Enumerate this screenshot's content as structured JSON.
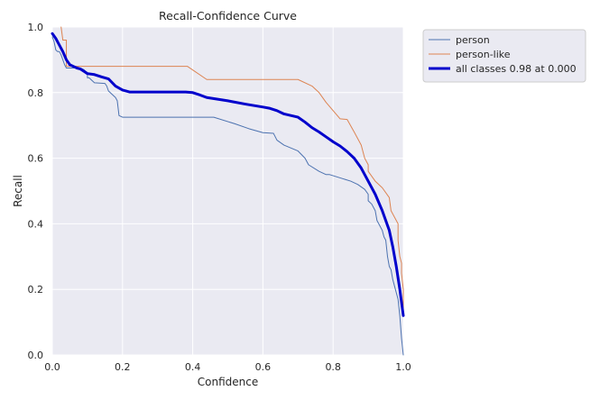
{
  "chart_data": {
    "type": "line",
    "title": "Recall-Confidence Curve",
    "xlabel": "Confidence",
    "ylabel": "Recall",
    "xlim": [
      0,
      1
    ],
    "ylim": [
      0,
      1
    ],
    "xticks": [
      "0.0",
      "0.2",
      "0.4",
      "0.6",
      "0.8",
      "1.0"
    ],
    "yticks": [
      "0.0",
      "0.2",
      "0.4",
      "0.6",
      "0.8",
      "1.0"
    ],
    "grid": true,
    "legend_position": "outside-top-right",
    "series": [
      {
        "name": "person",
        "color": "#4c72b0",
        "line_width": "thin",
        "points": [
          [
            0,
            0.97
          ],
          [
            0.005,
            0.955
          ],
          [
            0.01,
            0.93
          ],
          [
            0.015,
            0.925
          ],
          [
            0.02,
            0.925
          ],
          [
            0.025,
            0.915
          ],
          [
            0.03,
            0.9
          ],
          [
            0.035,
            0.885
          ],
          [
            0.04,
            0.875
          ],
          [
            0.06,
            0.875
          ],
          [
            0.08,
            0.875
          ],
          [
            0.09,
            0.87
          ],
          [
            0.1,
            0.86
          ],
          [
            0.1,
            0.845
          ],
          [
            0.105,
            0.845
          ],
          [
            0.11,
            0.84
          ],
          [
            0.12,
            0.83
          ],
          [
            0.15,
            0.828
          ],
          [
            0.155,
            0.82
          ],
          [
            0.16,
            0.805
          ],
          [
            0.17,
            0.795
          ],
          [
            0.18,
            0.785
          ],
          [
            0.185,
            0.775
          ],
          [
            0.19,
            0.73
          ],
          [
            0.2,
            0.725
          ],
          [
            0.3,
            0.725
          ],
          [
            0.46,
            0.725
          ],
          [
            0.52,
            0.705
          ],
          [
            0.56,
            0.69
          ],
          [
            0.6,
            0.678
          ],
          [
            0.63,
            0.676
          ],
          [
            0.64,
            0.655
          ],
          [
            0.66,
            0.64
          ],
          [
            0.7,
            0.622
          ],
          [
            0.72,
            0.6
          ],
          [
            0.73,
            0.58
          ],
          [
            0.76,
            0.56
          ],
          [
            0.78,
            0.55
          ],
          [
            0.79,
            0.55
          ],
          [
            0.82,
            0.54
          ],
          [
            0.85,
            0.53
          ],
          [
            0.87,
            0.52
          ],
          [
            0.89,
            0.505
          ],
          [
            0.9,
            0.49
          ],
          [
            0.9,
            0.47
          ],
          [
            0.91,
            0.46
          ],
          [
            0.92,
            0.44
          ],
          [
            0.925,
            0.41
          ],
          [
            0.93,
            0.4
          ],
          [
            0.94,
            0.38
          ],
          [
            0.945,
            0.36
          ],
          [
            0.95,
            0.35
          ],
          [
            0.955,
            0.3
          ],
          [
            0.96,
            0.27
          ],
          [
            0.965,
            0.26
          ],
          [
            0.97,
            0.23
          ],
          [
            0.975,
            0.21
          ],
          [
            0.98,
            0.19
          ],
          [
            0.985,
            0.17
          ],
          [
            0.99,
            0.12
          ],
          [
            0.995,
            0.05
          ],
          [
            1.0,
            0.0
          ]
        ]
      },
      {
        "name": "person-like",
        "color": "#dd8452",
        "line_width": "thin",
        "points": [
          [
            0.025,
            1.0
          ],
          [
            0.03,
            0.96
          ],
          [
            0.04,
            0.96
          ],
          [
            0.04,
            0.88
          ],
          [
            0.1,
            0.88
          ],
          [
            0.3,
            0.88
          ],
          [
            0.385,
            0.88
          ],
          [
            0.44,
            0.84
          ],
          [
            0.5,
            0.84
          ],
          [
            0.7,
            0.84
          ],
          [
            0.74,
            0.82
          ],
          [
            0.76,
            0.8
          ],
          [
            0.78,
            0.77
          ],
          [
            0.8,
            0.745
          ],
          [
            0.82,
            0.72
          ],
          [
            0.84,
            0.718
          ],
          [
            0.86,
            0.68
          ],
          [
            0.88,
            0.64
          ],
          [
            0.89,
            0.6
          ],
          [
            0.9,
            0.58
          ],
          [
            0.9,
            0.56
          ],
          [
            0.92,
            0.53
          ],
          [
            0.94,
            0.51
          ],
          [
            0.96,
            0.48
          ],
          [
            0.965,
            0.44
          ],
          [
            0.975,
            0.42
          ],
          [
            0.985,
            0.4
          ],
          [
            0.985,
            0.35
          ],
          [
            0.99,
            0.3
          ],
          [
            0.995,
            0.28
          ],
          [
            0.995,
            0.25
          ],
          [
            1.0,
            0.2
          ],
          [
            1.0,
            0.12
          ]
        ]
      },
      {
        "name": "all classes 0.98 at 0.000",
        "color": "#0000cc",
        "line_width": "thick",
        "points": [
          [
            0,
            0.98
          ],
          [
            0.01,
            0.965
          ],
          [
            0.02,
            0.945
          ],
          [
            0.03,
            0.925
          ],
          [
            0.04,
            0.9
          ],
          [
            0.05,
            0.885
          ],
          [
            0.06,
            0.88
          ],
          [
            0.07,
            0.875
          ],
          [
            0.08,
            0.872
          ],
          [
            0.09,
            0.865
          ],
          [
            0.1,
            0.858
          ],
          [
            0.12,
            0.855
          ],
          [
            0.14,
            0.848
          ],
          [
            0.16,
            0.842
          ],
          [
            0.18,
            0.82
          ],
          [
            0.2,
            0.808
          ],
          [
            0.22,
            0.802
          ],
          [
            0.3,
            0.802
          ],
          [
            0.38,
            0.802
          ],
          [
            0.4,
            0.8
          ],
          [
            0.42,
            0.793
          ],
          [
            0.44,
            0.785
          ],
          [
            0.5,
            0.775
          ],
          [
            0.55,
            0.765
          ],
          [
            0.6,
            0.756
          ],
          [
            0.62,
            0.752
          ],
          [
            0.64,
            0.745
          ],
          [
            0.66,
            0.735
          ],
          [
            0.7,
            0.725
          ],
          [
            0.72,
            0.71
          ],
          [
            0.74,
            0.693
          ],
          [
            0.76,
            0.68
          ],
          [
            0.78,
            0.665
          ],
          [
            0.8,
            0.65
          ],
          [
            0.82,
            0.637
          ],
          [
            0.84,
            0.62
          ],
          [
            0.86,
            0.6
          ],
          [
            0.88,
            0.57
          ],
          [
            0.9,
            0.53
          ],
          [
            0.92,
            0.49
          ],
          [
            0.94,
            0.44
          ],
          [
            0.96,
            0.38
          ],
          [
            0.97,
            0.33
          ],
          [
            0.98,
            0.27
          ],
          [
            0.99,
            0.2
          ],
          [
            1.0,
            0.12
          ]
        ]
      }
    ]
  }
}
